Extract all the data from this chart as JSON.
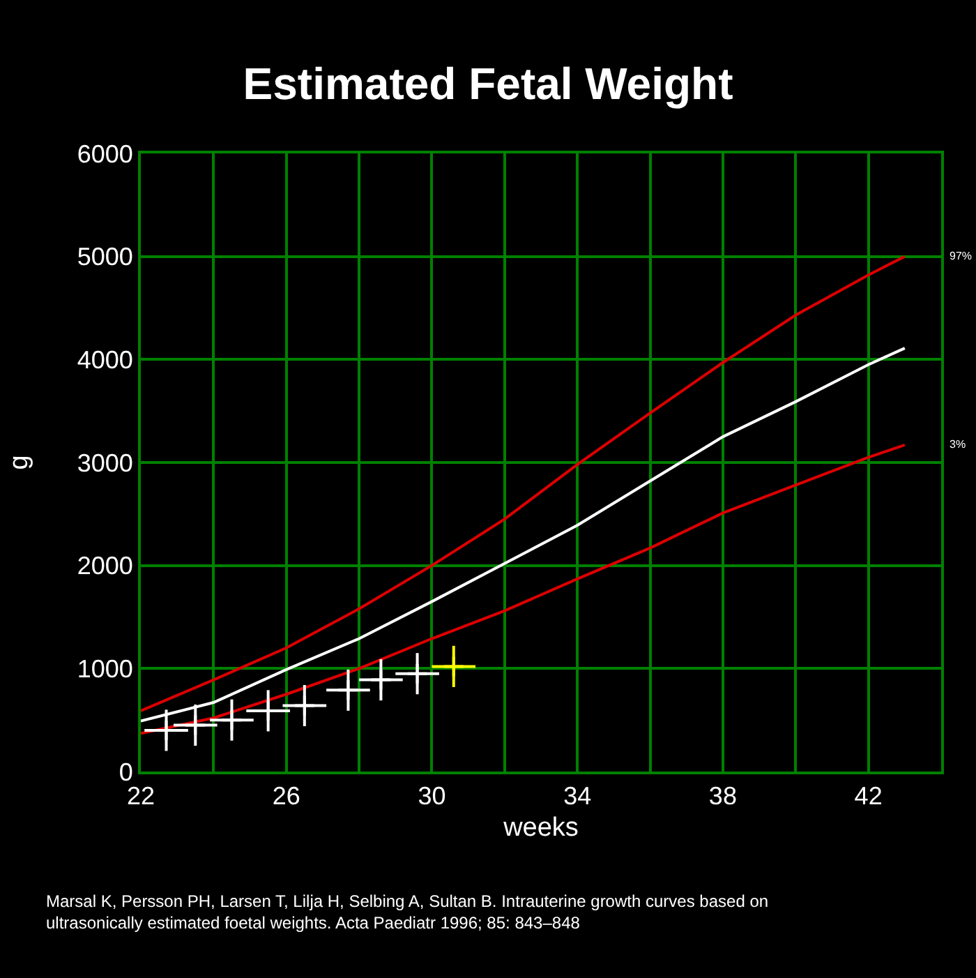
{
  "chart_data": {
    "type": "line",
    "title": "Estimated Fetal Weight",
    "xlabel": "weeks",
    "ylabel": "g",
    "x": [
      22,
      24,
      26,
      28,
      30,
      32,
      34,
      36,
      38,
      40,
      42,
      43
    ],
    "series": [
      {
        "name": "97%",
        "color": "#dd0000",
        "values": [
          590,
          890,
          1200,
          1580,
          2000,
          2450,
          2980,
          3480,
          3970,
          4430,
          4820,
          5000
        ]
      },
      {
        "color": "#ffffff",
        "values": [
          490,
          670,
          990,
          1290,
          1650,
          2020,
          2390,
          2820,
          3250,
          3590,
          3950,
          4110
        ]
      },
      {
        "name": "3%",
        "color": "#dd0000",
        "values": [
          370,
          520,
          750,
          1000,
          1290,
          1560,
          1870,
          2170,
          2510,
          2780,
          3050,
          3170
        ]
      },
      {
        "type": "scatter",
        "marker": "cross",
        "color": "#ffffff",
        "x": [
          22.7,
          23.5,
          24.5,
          25.5,
          26.5,
          27.7,
          28.6,
          29.6
        ],
        "values": [
          400,
          450,
          500,
          590,
          640,
          790,
          890,
          950
        ],
        "errors": [
          200,
          200,
          200,
          200,
          200,
          200,
          200,
          200
        ],
        "xerrors": [
          0.6,
          0.6,
          0.6,
          0.6,
          0.6,
          0.6,
          0.6,
          0.6
        ]
      },
      {
        "type": "scatter",
        "marker": "cross",
        "color": "#ffff00",
        "x": [
          30.6
        ],
        "values": [
          1020
        ],
        "errors": [
          200
        ],
        "xerrors": [
          0.6
        ]
      }
    ],
    "xlim": [
      22,
      44
    ],
    "xticks": [
      22,
      {
        "value": 24,
        "label": null
      },
      26,
      {
        "value": 28,
        "label": null
      },
      30,
      {
        "value": 32,
        "label": null
      },
      34,
      {
        "value": 36,
        "label": null
      },
      38,
      {
        "value": 40,
        "label": null
      },
      42,
      {
        "value": 44,
        "label": null
      }
    ],
    "ylim": [
      0,
      6000
    ],
    "yticks": [
      0,
      1000,
      2000,
      3000,
      4000,
      5000,
      6000
    ],
    "grid": true,
    "legend": false,
    "annotations": [
      "Marsal K, Persson PH, Larsen T, Lilja H, Selbing A, Sultan B. Intrauterine growth curves based on\nultrasonically estimated foetal weights. Acta Paediatr 1996; 85: 843–848"
    ]
  }
}
